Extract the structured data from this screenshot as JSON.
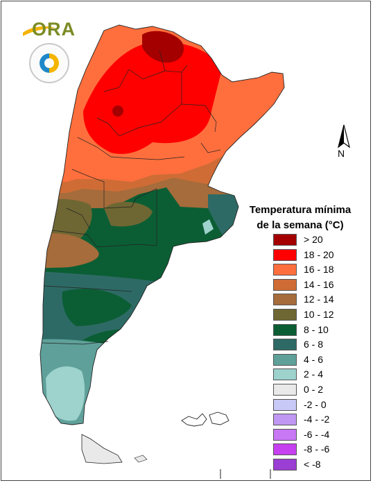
{
  "logo": {
    "text": "ORA"
  },
  "north_arrow": {
    "label": "N"
  },
  "legend": {
    "title_line1": "Temperatura mínima",
    "title_line2": "de la semana (°C)",
    "classes": [
      {
        "label": "> 20",
        "color": "#a50000"
      },
      {
        "label": "18 - 20",
        "color": "#ff0000"
      },
      {
        "label": "16 - 18",
        "color": "#ff6f3d"
      },
      {
        "label": "14 - 16",
        "color": "#cf6c36"
      },
      {
        "label": "12 - 14",
        "color": "#a66c3b"
      },
      {
        "label": "10 - 12",
        "color": "#6e6733"
      },
      {
        "label": "8 - 10",
        "color": "#0b5e34"
      },
      {
        "label": "6 - 8",
        "color": "#2e6a65"
      },
      {
        "label": "4 - 6",
        "color": "#5fa09a"
      },
      {
        "label": "2 - 4",
        "color": "#9dd2cd"
      },
      {
        "label": "0 - 2",
        "color": "#e9e9e9"
      },
      {
        "label": "-2 - 0",
        "color": "#c9c9f7"
      },
      {
        "label": "-4 - -2",
        "color": "#c097f2"
      },
      {
        "label": "-6 - -4",
        "color": "#c877f5"
      },
      {
        "label": "-8 - -6",
        "color": "#c63ff0"
      },
      {
        "label": "< -8",
        "color": "#9b3ed3"
      }
    ]
  }
}
